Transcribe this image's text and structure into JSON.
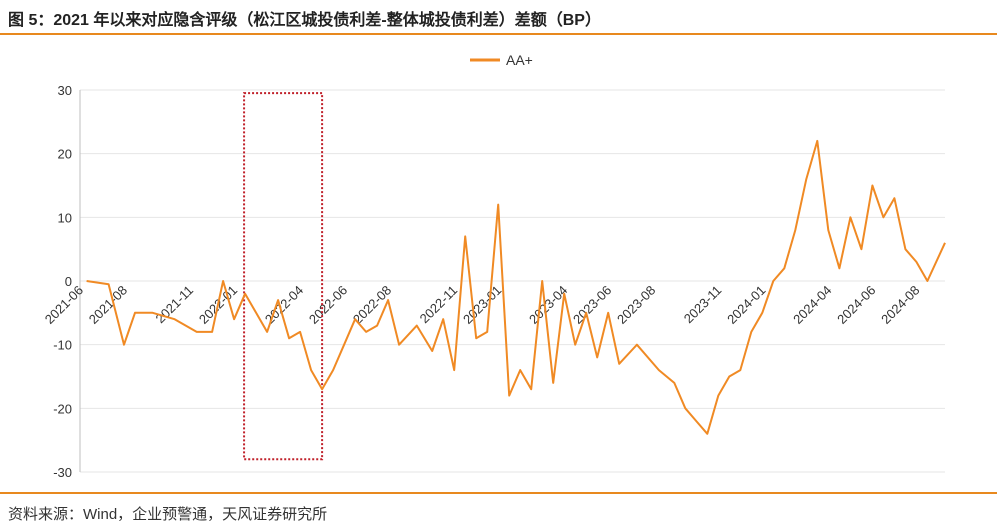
{
  "title": "图 5：2021 年以来对应隐含评级（松江区城投债利差-整体城投债利差）差额（BP）",
  "source": "资料来源：Wind，企业预警通，天风证券研究所",
  "colors": {
    "line": "#f08a24",
    "accent": "#e8891e",
    "highlight_box": "#c0202a",
    "grid": "#e6e6e6"
  },
  "chart_data": {
    "type": "line",
    "title": "",
    "xlabel": "",
    "ylabel": "",
    "ylim": [
      -30,
      30
    ],
    "yticks": [
      30,
      20,
      10,
      0,
      -10,
      -20,
      -30
    ],
    "x_tick_labels": [
      "2021-06",
      "2021-08",
      "2021-11",
      "2022-01",
      "2022-04",
      "2022-06",
      "2022-08",
      "2022-11",
      "2023-01",
      "2023-04",
      "2023-06",
      "2023-08",
      "2023-11",
      "2024-01",
      "2024-04",
      "2024-06",
      "2024-08"
    ],
    "legend": {
      "position": "top-center"
    },
    "grid": {
      "y": true,
      "x": false
    },
    "highlight_range": [
      "2022-01",
      "2022-04"
    ],
    "series": [
      {
        "name": "AA+",
        "x": [
          "2021-06",
          "2021-07",
          "2021-08",
          "2021-08",
          "2021-09",
          "2021-10",
          "2021-11",
          "2021-12",
          "2021-12",
          "2022-01",
          "2022-01",
          "2022-02",
          "2022-02",
          "2022-03",
          "2022-03",
          "2022-04",
          "2022-04",
          "2022-05",
          "2022-05",
          "2022-06",
          "2022-06",
          "2022-07",
          "2022-07",
          "2022-08",
          "2022-08",
          "2022-09",
          "2022-10",
          "2022-10",
          "2022-11",
          "2022-11",
          "2022-12",
          "2022-12",
          "2023-01",
          "2023-01",
          "2023-02",
          "2023-02",
          "2023-03",
          "2023-03",
          "2023-04",
          "2023-04",
          "2023-05",
          "2023-05",
          "2023-06",
          "2023-06",
          "2023-07",
          "2023-08",
          "2023-09",
          "2023-09",
          "2023-10",
          "2023-10",
          "2023-11",
          "2023-11",
          "2023-12",
          "2023-12",
          "2024-01",
          "2024-01",
          "2024-02",
          "2024-02",
          "2024-03",
          "2024-03",
          "2024-04",
          "2024-04",
          "2024-05",
          "2024-05",
          "2024-06",
          "2024-06",
          "2024-07",
          "2024-07",
          "2024-08",
          "2024-08",
          "2024-09"
        ],
        "y": [
          0,
          -0.5,
          -10,
          -5,
          -5,
          -6,
          -8,
          -8,
          0,
          -6,
          -2,
          -5,
          -8,
          -3,
          -9,
          -8,
          -14,
          -17,
          -14,
          -10,
          -6,
          -8,
          -7,
          -3,
          -10,
          -7,
          -11,
          -6,
          -14,
          7,
          -9,
          -8,
          12,
          -18,
          -14,
          -17,
          0,
          -16,
          -2,
          -10,
          -5,
          -12,
          -5,
          -13,
          -10,
          -14,
          -16,
          -20,
          -22,
          -24,
          -18,
          -15,
          -14,
          -8,
          -5,
          0,
          2,
          8,
          16,
          22,
          8,
          2,
          10,
          5,
          15,
          10,
          13,
          5,
          3,
          0,
          6
        ]
      }
    ]
  }
}
